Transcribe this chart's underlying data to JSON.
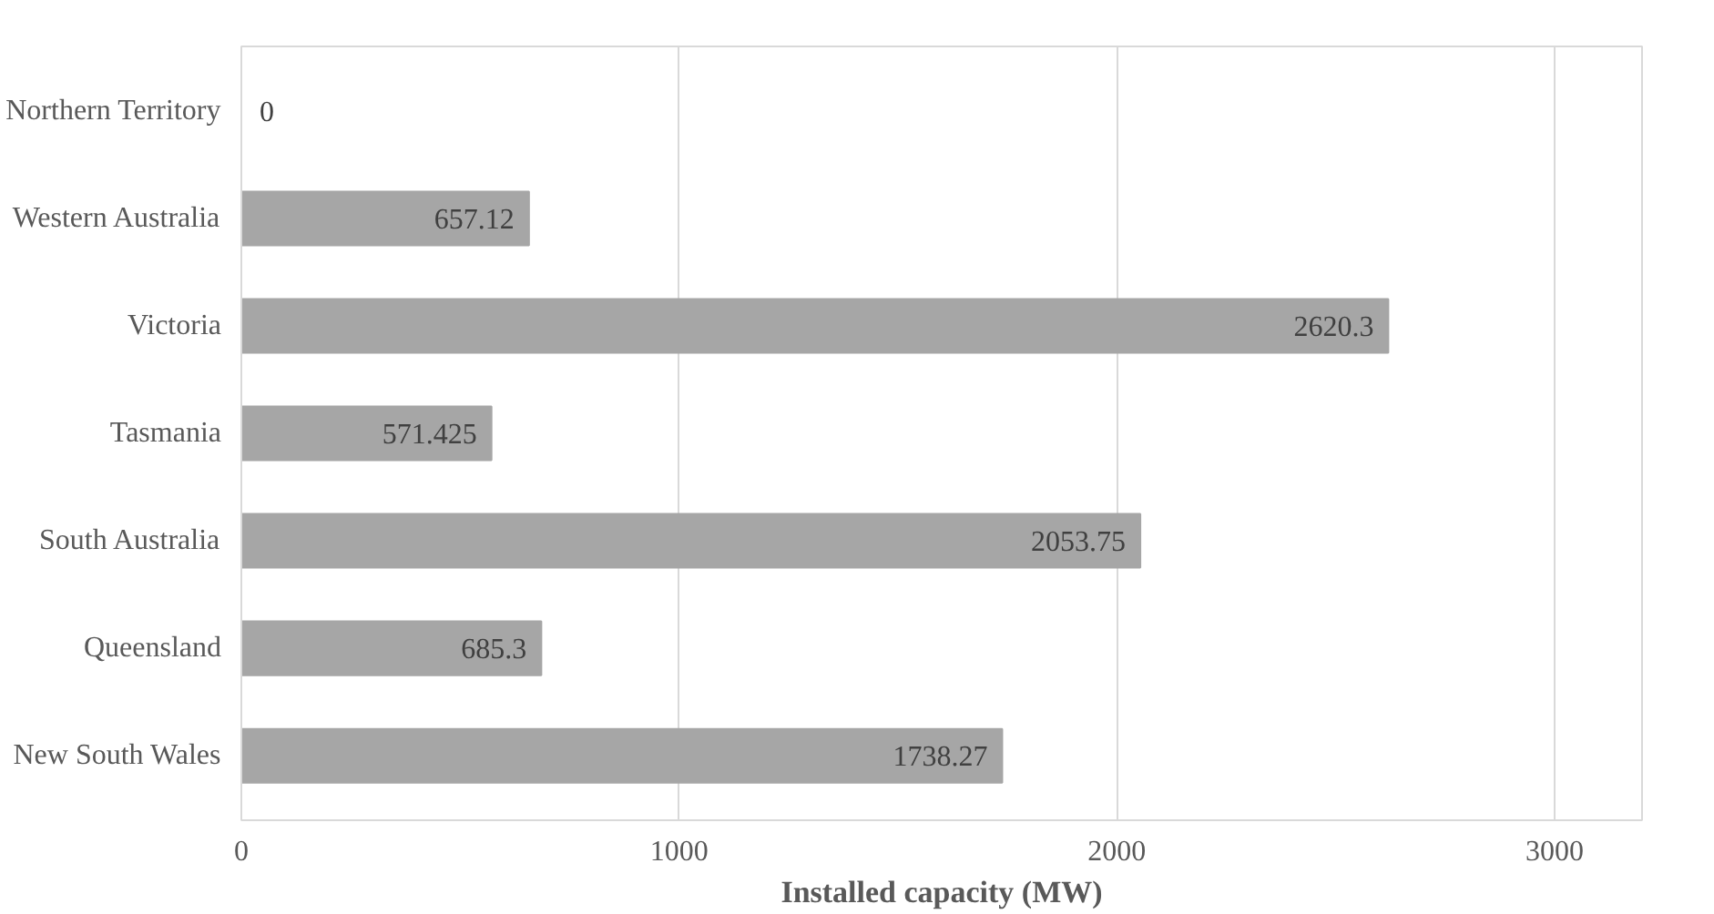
{
  "chart_data": {
    "type": "bar",
    "orientation": "horizontal",
    "xlabel": "Installed capacity (MW)",
    "categories": [
      "Northern Territory",
      "Western Australia",
      "Victoria",
      "Tasmania",
      "South Australia",
      "Queensland",
      "New South Wales"
    ],
    "values": [
      0,
      657.12,
      2620.3,
      571.425,
      2053.75,
      685.3,
      1738.27
    ],
    "color": "#a6a6a6",
    "xlim": [
      0,
      3200
    ],
    "xticks": [
      0,
      1000,
      2000,
      3000
    ],
    "grid": "x",
    "data_labels": true
  }
}
